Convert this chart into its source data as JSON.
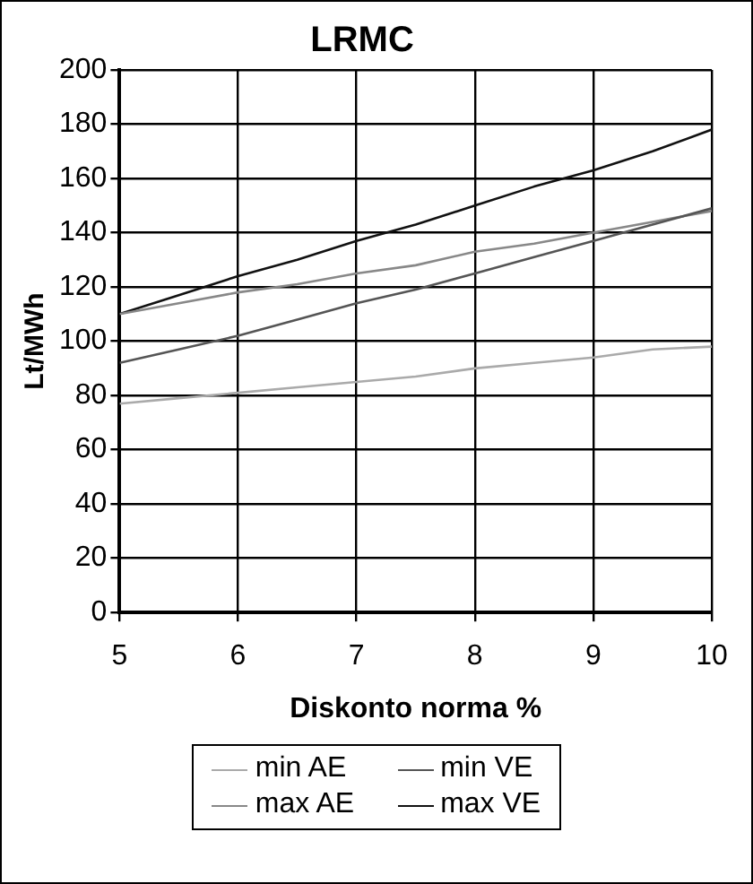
{
  "chart_data": {
    "type": "line",
    "title": "LRMC",
    "xlabel": "Diskonto norma %",
    "ylabel": "Lt/MWh",
    "x": [
      5,
      5.5,
      6,
      6.5,
      7,
      7.5,
      8,
      8.5,
      9,
      9.5,
      10
    ],
    "series": [
      {
        "name": "min AE",
        "color": "#aaaaaa",
        "values": [
          77,
          79,
          81,
          83,
          85,
          87,
          90,
          92,
          94,
          97,
          98
        ]
      },
      {
        "name": "min VE",
        "color": "#555555",
        "values": [
          92,
          97,
          102,
          108,
          114,
          119,
          125,
          131,
          137,
          143,
          149
        ]
      },
      {
        "name": "max AE",
        "color": "#888888",
        "values": [
          110,
          114,
          118,
          121,
          125,
          128,
          133,
          136,
          140,
          144,
          148
        ]
      },
      {
        "name": "max VE",
        "color": "#111111",
        "values": [
          110,
          117,
          124,
          130,
          137,
          143,
          150,
          157,
          163,
          170,
          178
        ]
      }
    ],
    "xlim": [
      5,
      10
    ],
    "xticks": [
      5,
      6,
      7,
      8,
      9,
      10
    ],
    "ylim": [
      0,
      200
    ],
    "yticks": [
      0,
      20,
      40,
      60,
      80,
      100,
      120,
      140,
      160,
      180,
      200
    ],
    "grid": true,
    "legend": "bottom",
    "marker": "none",
    "line_style": "solid"
  }
}
